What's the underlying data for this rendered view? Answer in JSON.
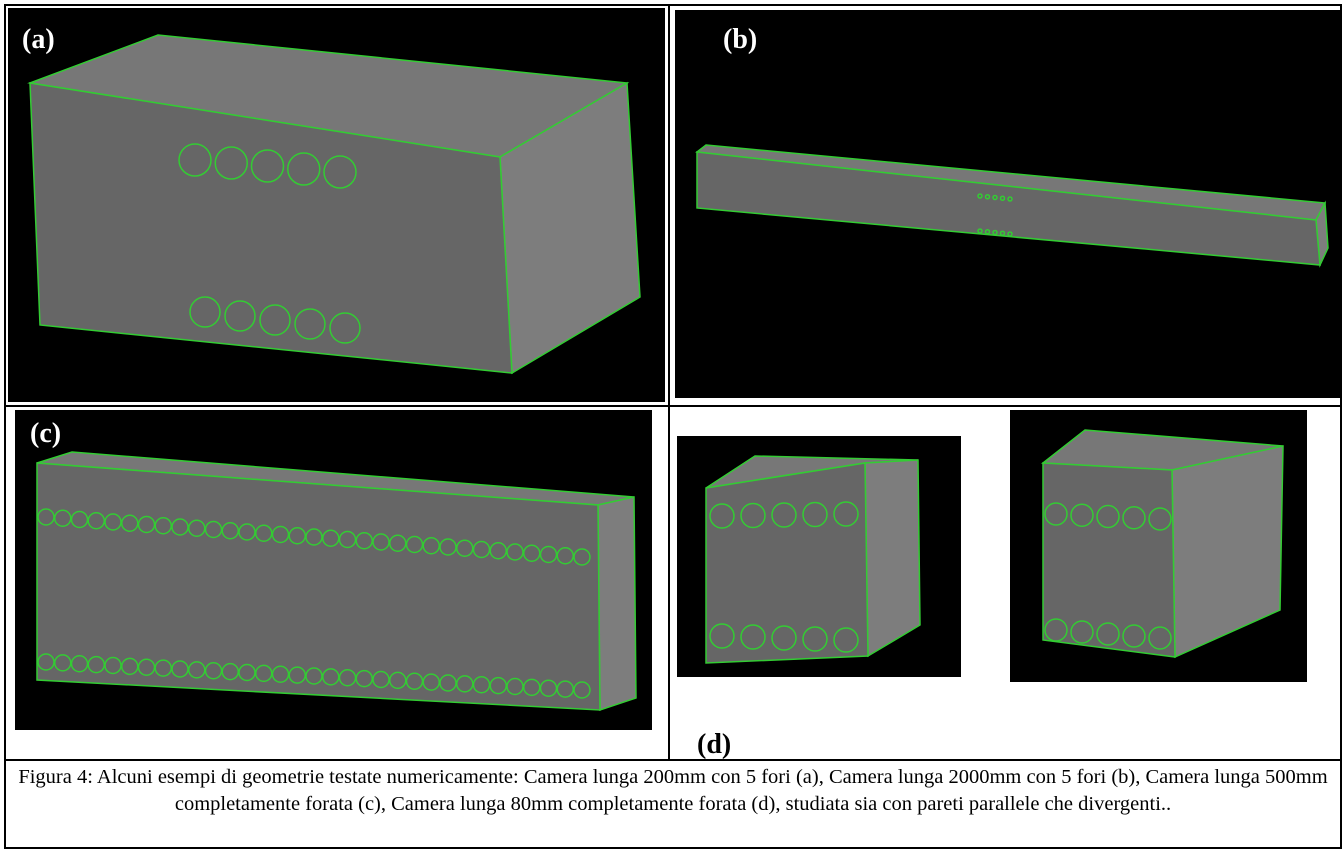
{
  "figure": {
    "panels": [
      {
        "label": "(a)"
      },
      {
        "label": "(b)"
      },
      {
        "label": "(c)"
      },
      {
        "label": "(d)"
      }
    ],
    "caption": "Figura 4: Alcuni esempi di geometrie testate numericamente: Camera lunga 200mm con 5 fori (a),  Camera lunga 2000mm con 5 fori (b), Camera lunga 500mm completamente forata (c), Camera lunga 80mm completamente forata (d), studiata sia con pareti parallele che divergenti.."
  }
}
